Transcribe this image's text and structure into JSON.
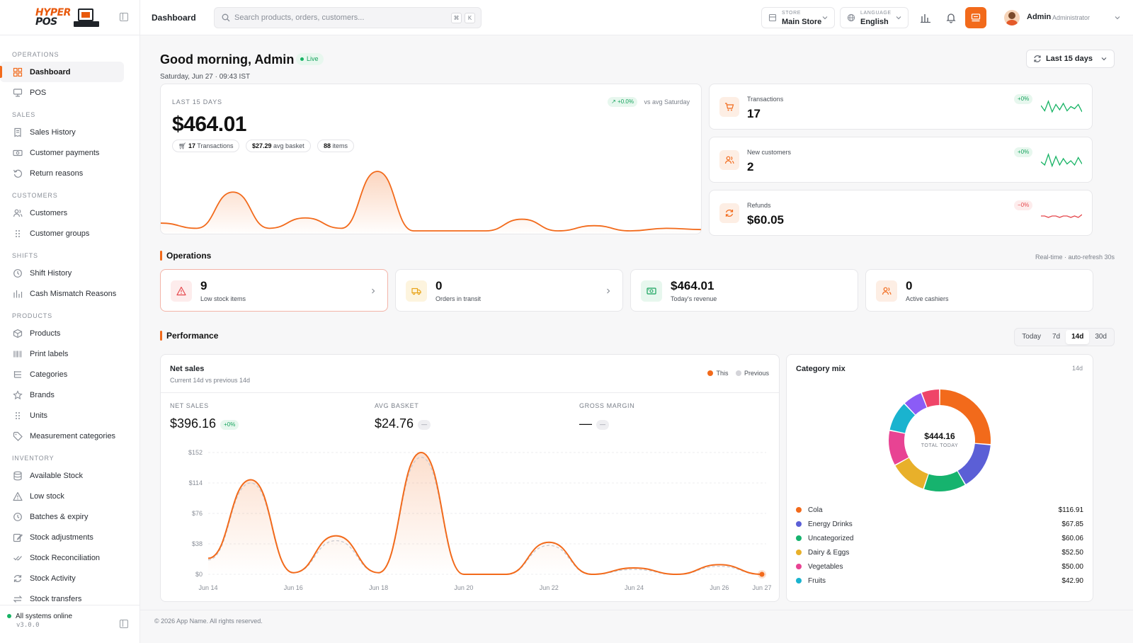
{
  "brand": {
    "logo_line1": "HYPER",
    "logo_line2": "POS"
  },
  "sidebar": {
    "sections": [
      {
        "title": "OPERATIONS",
        "items": [
          {
            "label": "Dashboard",
            "icon": "dashboard-icon",
            "active": true
          },
          {
            "label": "POS",
            "icon": "pos-icon"
          }
        ]
      },
      {
        "title": "SALES",
        "items": [
          {
            "label": "Sales History",
            "icon": "receipt-icon"
          },
          {
            "label": "Customer payments",
            "icon": "cash-icon"
          },
          {
            "label": "Return reasons",
            "icon": "undo-icon"
          }
        ]
      },
      {
        "title": "CUSTOMERS",
        "items": [
          {
            "label": "Customers",
            "icon": "users-icon"
          },
          {
            "label": "Customer groups",
            "icon": "grip-icon"
          }
        ]
      },
      {
        "title": "SHIFTS",
        "items": [
          {
            "label": "Shift History",
            "icon": "clock-icon"
          },
          {
            "label": "Cash Mismatch Reasons",
            "icon": "bar-chart-icon"
          }
        ]
      },
      {
        "title": "PRODUCTS",
        "items": [
          {
            "label": "Products",
            "icon": "box-icon"
          },
          {
            "label": "Print labels",
            "icon": "barcode-icon"
          },
          {
            "label": "Categories",
            "icon": "list-tree-icon"
          },
          {
            "label": "Brands",
            "icon": "star-icon"
          },
          {
            "label": "Units",
            "icon": "grip-icon"
          },
          {
            "label": "Measurement categories",
            "icon": "tag-icon"
          }
        ]
      },
      {
        "title": "INVENTORY",
        "items": [
          {
            "label": "Available Stock",
            "icon": "database-icon"
          },
          {
            "label": "Low stock",
            "icon": "warning-icon"
          },
          {
            "label": "Batches & expiry",
            "icon": "clock-icon"
          },
          {
            "label": "Stock adjustments",
            "icon": "edit-icon"
          },
          {
            "label": "Stock Reconciliation",
            "icon": "check-double-icon"
          },
          {
            "label": "Stock Activity",
            "icon": "refresh-icon"
          },
          {
            "label": "Stock transfers",
            "icon": "transfer-icon"
          }
        ]
      }
    ],
    "footer": {
      "status": "All systems online",
      "version": "v3.0.0"
    }
  },
  "topbar": {
    "breadcrumb": "Dashboard",
    "search_placeholder": "Search products, orders, customers...",
    "kbd_1": "⌘",
    "kbd_2": "K",
    "store_label": "STORE",
    "store_value": "Main Store",
    "language_label": "LANGUAGE",
    "language_value": "English",
    "user_name": "Admin",
    "user_role": "Administrator"
  },
  "header": {
    "greeting": "Good morning, Admin",
    "live": "Live",
    "date": "Saturday, Jun 27 · 09:43 IST",
    "range": "Last 15 days"
  },
  "hero": {
    "caption": "LAST 15 DAYS",
    "total": "$464.01",
    "delta": "↗ +0.0%",
    "vs": "vs avg Saturday",
    "chip_tx_value": "17",
    "chip_tx_label": "Transactions",
    "chip_basket_value": "$27.29",
    "chip_basket_label": "avg basket",
    "chip_items_value": "88",
    "chip_items_label": "items",
    "trend": [
      6,
      2,
      30,
      2,
      10,
      2,
      46,
      0,
      0,
      0,
      9,
      0,
      4,
      0,
      2,
      1
    ]
  },
  "kpis": [
    {
      "label": "Transactions",
      "value": "17",
      "delta": "+0%",
      "trend": "up",
      "icon": "cart-icon",
      "spark": [
        8,
        3,
        12,
        2,
        9,
        4,
        10,
        3,
        7,
        5,
        9,
        2
      ]
    },
    {
      "label": "New customers",
      "value": "2",
      "delta": "+0%",
      "trend": "up",
      "icon": "users-icon",
      "spark": [
        5,
        2,
        12,
        1,
        10,
        2,
        8,
        3,
        6,
        2,
        9,
        3
      ]
    },
    {
      "label": "Refunds",
      "value": "$60.05",
      "delta": "−0%",
      "trend": "down",
      "icon": "refresh-icon",
      "spark": [
        3,
        3,
        2,
        3,
        3,
        2,
        3,
        3,
        2,
        3,
        2,
        4
      ]
    }
  ],
  "operations": {
    "title": "Operations",
    "note": "Real-time · auto-refresh 30s",
    "cards": [
      {
        "value": "9",
        "label": "Low stock items",
        "icon": "warning-icon",
        "color": "#e5484d",
        "bg": "#fdecec",
        "chevron": true,
        "warn": true
      },
      {
        "value": "0",
        "label": "Orders in transit",
        "icon": "truck-icon",
        "color": "#e8a317",
        "bg": "#fdf4de",
        "chevron": true
      },
      {
        "value": "$464.01",
        "label": "Today's revenue",
        "icon": "money-icon",
        "color": "#16a35d",
        "bg": "#e7f7ee",
        "chevron": false
      },
      {
        "value": "0",
        "label": "Active cashiers",
        "icon": "users-icon",
        "color": "#f26a1b",
        "bg": "#fdeee4",
        "chevron": false
      }
    ]
  },
  "performance": {
    "title": "Performance",
    "ranges": [
      "Today",
      "7d",
      "14d",
      "30d"
    ],
    "active_range": "14d"
  },
  "net_sales": {
    "title": "Net sales",
    "subtitle": "Current 14d vs previous 14d",
    "legend_this": "This",
    "legend_prev": "Previous",
    "metrics": [
      {
        "caption": "NET SALES",
        "value": "$396.16",
        "badge": "+0%",
        "green": true
      },
      {
        "caption": "AVG BASKET",
        "value": "$24.76",
        "badge": "—",
        "green": false
      },
      {
        "caption": "GROSS MARGIN",
        "value": "—",
        "badge": "—",
        "green": false
      }
    ]
  },
  "chart_data": {
    "type": "area",
    "title": "Net sales",
    "x": [
      "Jun 14",
      "Jun 15",
      "Jun 16",
      "Jun 17",
      "Jun 18",
      "Jun 19",
      "Jun 20",
      "Jun 21",
      "Jun 22",
      "Jun 23",
      "Jun 24",
      "Jun 25",
      "Jun 26",
      "Jun 27"
    ],
    "x_ticks": [
      "Jun 14",
      "Jun 16",
      "Jun 18",
      "Jun 20",
      "Jun 22",
      "Jun 24",
      "Jun 26",
      "Jun 27"
    ],
    "y_ticks": [
      "$0",
      "$38",
      "$76",
      "$114",
      "$152"
    ],
    "ylim": [
      0,
      152
    ],
    "series": [
      {
        "name": "This",
        "color": "#f26a1b",
        "values": [
          20,
          118,
          2,
          48,
          2,
          152,
          0,
          0,
          40,
          0,
          8,
          0,
          12,
          0
        ]
      },
      {
        "name": "Previous",
        "color": "#c9c9cf",
        "values": [
          18,
          114,
          2,
          42,
          2,
          146,
          0,
          0,
          36,
          0,
          6,
          0,
          10,
          0
        ]
      }
    ],
    "grid": true
  },
  "category_mix": {
    "title": "Category mix",
    "period": "14d",
    "total": "$444.16",
    "total_label": "TOTAL TODAY",
    "items": [
      {
        "name": "Cola",
        "value": 116.91,
        "label": "$116.91",
        "color": "#f26a1b"
      },
      {
        "name": "Energy Drinks",
        "value": 67.85,
        "label": "$67.85",
        "color": "#5b5fd6"
      },
      {
        "name": "Uncategorized",
        "value": 60.06,
        "label": "$60.06",
        "color": "#16b36e"
      },
      {
        "name": "Dairy & Eggs",
        "value": 52.5,
        "label": "$52.50",
        "color": "#e8b02a"
      },
      {
        "name": "Vegetables",
        "value": 50.0,
        "label": "$50.00",
        "color": "#e84393"
      },
      {
        "name": "Fruits",
        "value": 42.9,
        "label": "$42.90",
        "color": "#1ab3cf"
      },
      {
        "name": "",
        "value": 28.0,
        "label": "",
        "color": "#8b5cf6"
      },
      {
        "name": "",
        "value": 25.94,
        "label": "",
        "color": "#ef4468"
      }
    ]
  },
  "footer": {
    "copyright": "© 2026 App Name. All rights reserved."
  }
}
